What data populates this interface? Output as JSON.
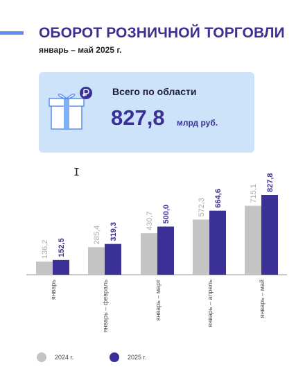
{
  "header": {
    "title": "ОБОРОТ РОЗНИЧНОЙ ТОРГОВЛИ",
    "subtitle": "январь – май 2025 г."
  },
  "summary": {
    "label": "Всего по области",
    "value": "827,8",
    "unit": "млрд руб.",
    "icon": "gift-box-ruble-icon"
  },
  "colors": {
    "accent": "#5b8ff0",
    "title": "#3a3096",
    "card_bg": "#cde3fa",
    "series_2024": "#c4c4c4",
    "series_2025": "#3a3096"
  },
  "chart_data": {
    "type": "bar",
    "categories": [
      "январь",
      "январь – февраль",
      "январь – март",
      "январь – апрель",
      "январь – май"
    ],
    "series": [
      {
        "name": "2024 г.",
        "values": [
          136.2,
          285.4,
          430.7,
          572.3,
          715.1
        ],
        "labels": [
          "136,2",
          "285,4",
          "430,7",
          "572,3",
          "715,1"
        ],
        "color": "#c4c4c4"
      },
      {
        "name": "2025 г.",
        "values": [
          152.5,
          319.3,
          500.0,
          664.6,
          827.8
        ],
        "labels": [
          "152,5",
          "319,3",
          "500,0",
          "664,6",
          "827,8"
        ],
        "color": "#3a3096"
      }
    ],
    "ylim": [
      0,
      900
    ],
    "grid": false,
    "legend": "bottom-left"
  }
}
